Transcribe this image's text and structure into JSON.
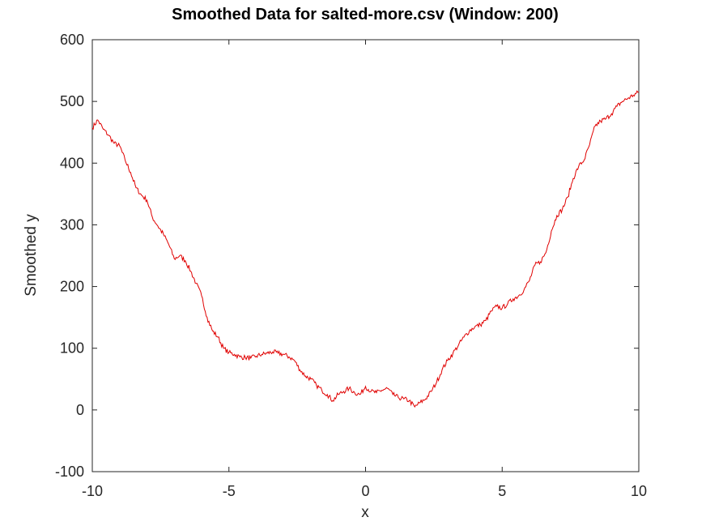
{
  "chart_data": {
    "type": "line",
    "title": "Smoothed Data for salted-more.csv (Window: 200)",
    "xlabel": "x",
    "ylabel": "Smoothed y",
    "xlim": [
      -10,
      10
    ],
    "ylim": [
      -100,
      600
    ],
    "xticks": [
      -10,
      -5,
      0,
      5,
      10
    ],
    "yticks": [
      -100,
      0,
      100,
      200,
      300,
      400,
      500,
      600
    ],
    "grid": false,
    "legend": "none",
    "line_color": "#e00000",
    "series": [
      {
        "x": [
          -10,
          -9.8,
          -9.6,
          -9.4,
          -9.2,
          -9.0,
          -8.8,
          -8.6,
          -8.4,
          -8.2,
          -8.0,
          -7.8,
          -7.6,
          -7.4,
          -7.2,
          -7.0,
          -6.8,
          -6.6,
          -6.4,
          -6.2,
          -6.0,
          -5.8,
          -5.6,
          -5.4,
          -5.2,
          -5.0,
          -4.8,
          -4.6,
          -4.4,
          -4.2,
          -4.0,
          -3.8,
          -3.6,
          -3.4,
          -3.2,
          -3.0,
          -2.8,
          -2.6,
          -2.4,
          -2.2,
          -2.0,
          -1.8,
          -1.6,
          -1.4,
          -1.2,
          -1.0,
          -0.8,
          -0.6,
          -0.4,
          -0.2,
          0.0,
          0.2,
          0.4,
          0.6,
          0.8,
          1.0,
          1.2,
          1.4,
          1.6,
          1.8,
          2.0,
          2.2,
          2.4,
          2.6,
          2.8,
          3.0,
          3.2,
          3.4,
          3.6,
          3.8,
          4.0,
          4.2,
          4.4,
          4.6,
          4.8,
          5.0,
          5.2,
          5.4,
          5.6,
          5.8,
          6.0,
          6.2,
          6.4,
          6.6,
          6.8,
          7.0,
          7.2,
          7.4,
          7.6,
          7.8,
          8.0,
          8.2,
          8.4,
          8.6,
          8.8,
          9.0,
          9.2,
          9.4,
          9.6,
          9.8,
          10.0
        ],
        "y": [
          457,
          470,
          455,
          445,
          432,
          428,
          405,
          385,
          360,
          348,
          340,
          312,
          298,
          285,
          268,
          245,
          250,
          242,
          225,
          205,
          185,
          150,
          128,
          118,
          100,
          93,
          90,
          86,
          85,
          84,
          87,
          90,
          92,
          94,
          92,
          90,
          86,
          80,
          65,
          55,
          50,
          40,
          32,
          25,
          15,
          25,
          30,
          35,
          28,
          25,
          38,
          30,
          28,
          32,
          35,
          25,
          20,
          18,
          15,
          5,
          12,
          18,
          30,
          45,
          65,
          80,
          92,
          105,
          118,
          128,
          135,
          138,
          145,
          160,
          168,
          165,
          172,
          180,
          185,
          195,
          210,
          235,
          240,
          255,
          290,
          315,
          325,
          345,
          375,
          395,
          405,
          430,
          460,
          468,
          472,
          480,
          492,
          500,
          505,
          510,
          515
        ]
      }
    ]
  }
}
